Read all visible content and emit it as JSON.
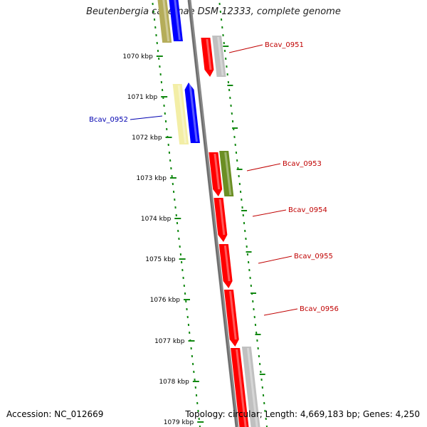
{
  "title": "Beutenbergia cavernae DSM 12333, complete genome",
  "accession": "Accession: NC_012669",
  "summary": "Topology: circular; Length: 4,669,183 bp; Genes: 4,250",
  "colors": {
    "forward_cds": "#0000ff",
    "reverse_cds": "#ff0000",
    "other_gene": "#c0c0c0",
    "olive_gene": "#6b8e23",
    "khaki_gene": "#b5ad5a",
    "pale_gene": "#f3eea6",
    "backbone": "#808080",
    "tick": "#118811"
  },
  "ticks": [
    {
      "label": "1070 kbp"
    },
    {
      "label": "1071 kbp"
    },
    {
      "label": "1072 kbp"
    },
    {
      "label": "1073 kbp"
    },
    {
      "label": "1074 kbp"
    },
    {
      "label": "1075 kbp"
    },
    {
      "label": "1076 kbp"
    },
    {
      "label": "1077 kbp"
    },
    {
      "label": "1078 kbp"
    },
    {
      "label": "1079 kbp"
    }
  ],
  "genes": [
    {
      "label": "Bcav_0951",
      "color": "#c00000"
    },
    {
      "label": "Bcav_0952",
      "color": "#0000b0"
    },
    {
      "label": "Bcav_0953",
      "color": "#c00000"
    },
    {
      "label": "Bcav_0954",
      "color": "#c00000"
    },
    {
      "label": "Bcav_0955",
      "color": "#c00000"
    },
    {
      "label": "Bcav_0956",
      "color": "#c00000"
    }
  ]
}
